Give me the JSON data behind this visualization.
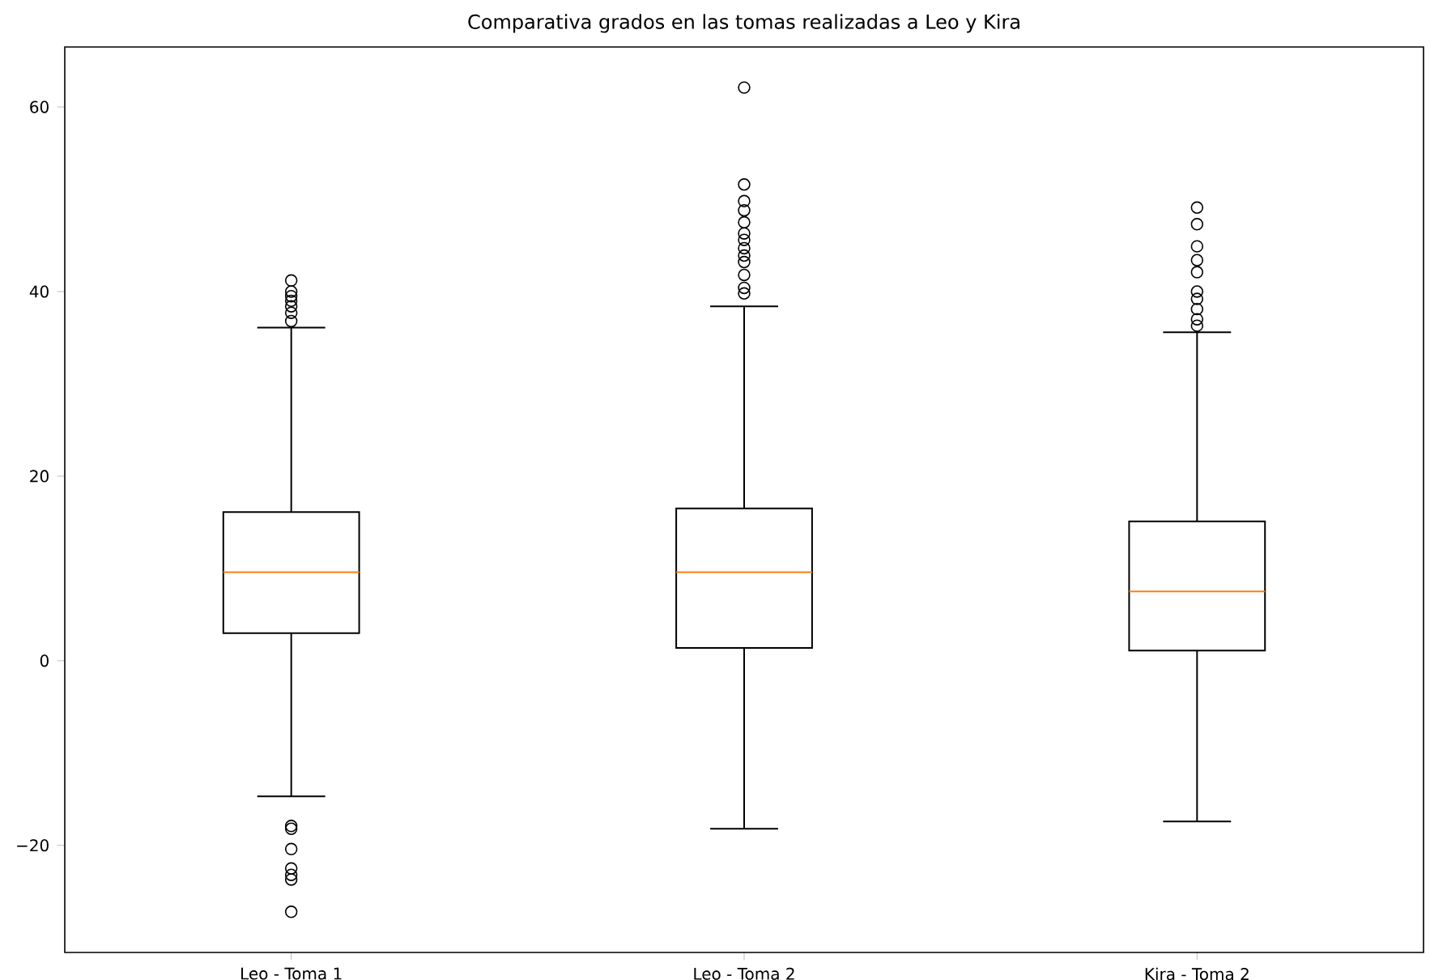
{
  "chart_data": {
    "type": "box",
    "title": "Comparativa grados en las tomas realizadas a Leo y Kira",
    "categories": [
      "Leo - Toma 1",
      "Leo - Toma 2",
      "Kira - Toma 2"
    ],
    "boxes": [
      {
        "low": -14.7,
        "q1": 3.0,
        "median": 9.6,
        "q3": 16.1,
        "high": 36.1,
        "outliers": [
          41.2,
          40.0,
          39.5,
          39.0,
          38.4,
          37.7,
          36.8,
          -17.9,
          -18.2,
          -20.4,
          -22.5,
          -23.2,
          -23.7,
          -27.2
        ]
      },
      {
        "low": -18.2,
        "q1": 1.4,
        "median": 9.6,
        "q3": 16.5,
        "high": 38.4,
        "outliers": [
          62.1,
          51.6,
          49.8,
          48.8,
          47.5,
          46.3,
          45.6,
          44.7,
          43.9,
          43.2,
          41.8,
          40.4,
          39.8
        ]
      },
      {
        "low": -17.4,
        "q1": 1.1,
        "median": 7.5,
        "q3": 15.1,
        "high": 35.6,
        "outliers": [
          49.1,
          47.3,
          44.9,
          43.4,
          42.1,
          40.0,
          39.2,
          38.1,
          37.0,
          36.3
        ]
      }
    ],
    "color": "#000000",
    "ylim": [
      -31.6,
      66.5
    ],
    "yticks": [
      {
        "value": -20,
        "label": "−20"
      },
      0,
      20,
      40,
      60
    ],
    "marker": "circle",
    "grid": false
  }
}
